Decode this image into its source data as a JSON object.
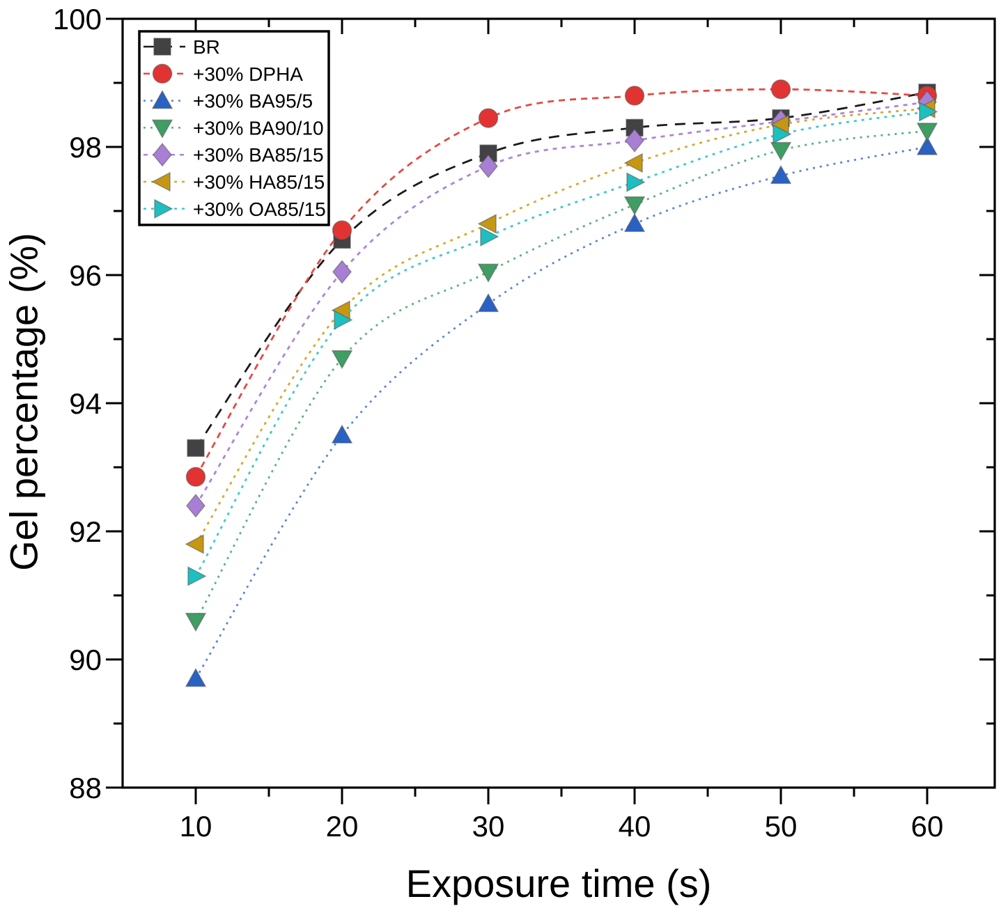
{
  "figure": {
    "background": "#ffffff",
    "frame_color": "#000000"
  },
  "chart_data": {
    "type": "line",
    "title": "",
    "xlabel": "Exposure time (s)",
    "ylabel": "Gel percentage (%)",
    "xlim": [
      5,
      65
    ],
    "ylim": [
      88,
      100
    ],
    "xticks": [
      10,
      20,
      30,
      40,
      50,
      60
    ],
    "yticks": [
      88,
      90,
      92,
      94,
      96,
      98,
      100
    ],
    "x_minor_ticks": [
      15,
      25,
      35,
      45,
      55
    ],
    "y_minor_ticks": [
      89,
      91,
      93,
      95,
      97,
      99
    ],
    "grid": false,
    "legend_position": "top-left",
    "x": [
      10,
      20,
      30,
      40,
      50,
      60
    ],
    "series": [
      {
        "name": "BR",
        "marker": "square",
        "color": "#424245",
        "line_color": "#1a1a1a",
        "dash": "15 11",
        "values": [
          93.3,
          96.55,
          97.9,
          98.3,
          98.45,
          98.85
        ]
      },
      {
        "name": "+30% DPHA",
        "marker": "circle",
        "color": "#e23333",
        "line_color": "#e24a44",
        "dash": "9 7",
        "values": [
          92.85,
          96.7,
          98.45,
          98.8,
          98.9,
          98.8
        ]
      },
      {
        "name": "+30% BA95/5",
        "marker": "triangle-up",
        "color": "#2862c4",
        "line_color": "#5b83d6",
        "dash": "3 7",
        "values": [
          89.7,
          93.5,
          95.55,
          96.8,
          97.55,
          98.0
        ]
      },
      {
        "name": "+30% BA90/10",
        "marker": "triangle-down",
        "color": "#3f9e63",
        "line_color": "#57b27d",
        "dash": "3 7",
        "values": [
          90.6,
          94.7,
          96.05,
          97.1,
          97.95,
          98.25
        ]
      },
      {
        "name": "+30% BA85/15",
        "marker": "diamond",
        "color": "#a87fd4",
        "line_color": "#ab85d6",
        "dash": "6 7",
        "values": [
          92.4,
          96.05,
          97.7,
          98.1,
          98.4,
          98.7
        ]
      },
      {
        "name": "+30% HA85/15",
        "marker": "triangle-left",
        "color": "#c69712",
        "line_color": "#d2ab2e",
        "dash": "4 7",
        "values": [
          91.8,
          95.45,
          96.8,
          97.75,
          98.35,
          98.6
        ]
      },
      {
        "name": "+30% OA85/15",
        "marker": "triangle-right",
        "color": "#1fbfbf",
        "line_color": "#3ecaca",
        "dash": "4 7",
        "values": [
          91.3,
          95.3,
          96.6,
          97.45,
          98.2,
          98.55
        ]
      }
    ]
  }
}
